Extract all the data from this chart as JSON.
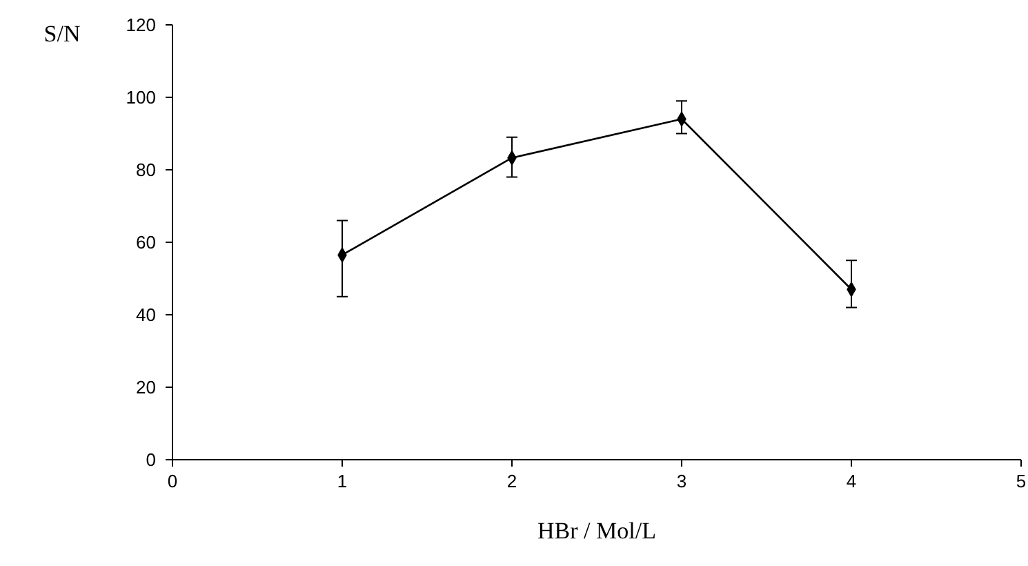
{
  "chart_data": {
    "type": "line",
    "xlabel": "HBr / Mol/L",
    "ylabel": "S/N",
    "x": [
      1,
      2,
      3,
      4
    ],
    "series": [
      {
        "color": "#000000",
        "values": [
          56.5,
          83.3,
          94,
          47
        ],
        "errors": [
          [
            45,
            66
          ],
          [
            78,
            89
          ],
          [
            90,
            99
          ],
          [
            42,
            55
          ]
        ]
      }
    ],
    "xlim": [
      0,
      5
    ],
    "xticks": [
      0,
      1,
      2,
      3,
      4,
      5
    ],
    "ylim": [
      0,
      120
    ],
    "yticks": [
      0,
      20,
      40,
      60,
      80,
      100,
      120
    ],
    "grid": false,
    "marker": "diamond",
    "line_style": "solid"
  }
}
